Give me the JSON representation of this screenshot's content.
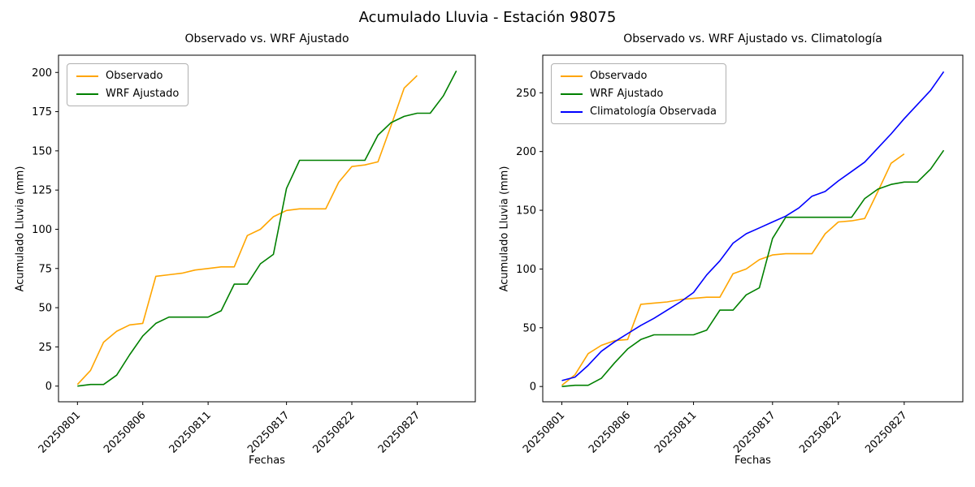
{
  "figure": {
    "suptitle": "Acumulado Lluvia - Estación 98075",
    "background": "#ffffff",
    "text_color": "#000000"
  },
  "chart_data": [
    {
      "type": "line",
      "title": "Observado vs. WRF Ajustado",
      "xlabel": "Fechas",
      "ylabel": "Acumulado Lluvia (mm)",
      "grid": false,
      "legend_position": "upper left",
      "x_categories": [
        "20250801",
        "20250802",
        "20250803",
        "20250804",
        "20250805",
        "20250806",
        "20250807",
        "20250808",
        "20250809",
        "20250810",
        "20250811",
        "20250812",
        "20250813",
        "20250814",
        "20250815",
        "20250816",
        "20250817",
        "20250818",
        "20250819",
        "20250820",
        "20250821",
        "20250822",
        "20250823",
        "20250824",
        "20250825",
        "20250826",
        "20250827",
        "20250828",
        "20250829",
        "20250830"
      ],
      "x_tick_indices": [
        0,
        5,
        10,
        16,
        21,
        26
      ],
      "x_tick_labels": [
        "20250801",
        "20250806",
        "20250811",
        "20250817",
        "20250822",
        "20250827"
      ],
      "y_ticks": [
        0,
        25,
        50,
        75,
        100,
        125,
        150,
        175,
        200
      ],
      "ylim": [
        -10,
        211
      ],
      "series": [
        {
          "name": "Observado",
          "color": "#ffa500",
          "values": [
            1,
            10,
            28,
            35,
            39,
            40,
            70,
            71,
            72,
            74,
            75,
            76,
            76,
            96,
            100,
            108,
            112,
            113,
            113,
            113,
            130,
            140,
            141,
            143,
            166,
            190,
            198
          ]
        },
        {
          "name": "WRF Ajustado",
          "color": "#008000",
          "values": [
            0,
            1,
            1,
            7,
            20,
            32,
            40,
            44,
            44,
            44,
            44,
            48,
            65,
            65,
            78,
            84,
            126,
            144,
            144,
            144,
            144,
            144,
            144,
            160,
            168,
            172,
            174,
            174,
            185,
            201
          ]
        }
      ]
    },
    {
      "type": "line",
      "title": "Observado vs. WRF Ajustado vs. Climatología",
      "xlabel": "Fechas",
      "ylabel": "Acumulado Lluvia (mm)",
      "grid": false,
      "legend_position": "upper left",
      "x_categories": [
        "20250801",
        "20250802",
        "20250803",
        "20250804",
        "20250805",
        "20250806",
        "20250807",
        "20250808",
        "20250809",
        "20250810",
        "20250811",
        "20250812",
        "20250813",
        "20250814",
        "20250815",
        "20250816",
        "20250817",
        "20250818",
        "20250819",
        "20250820",
        "20250821",
        "20250822",
        "20250823",
        "20250824",
        "20250825",
        "20250826",
        "20250827",
        "20250828",
        "20250829",
        "20250830"
      ],
      "x_tick_indices": [
        0,
        5,
        10,
        16,
        21,
        26
      ],
      "x_tick_labels": [
        "20250801",
        "20250806",
        "20250811",
        "20250817",
        "20250822",
        "20250827"
      ],
      "y_ticks": [
        0,
        50,
        100,
        150,
        200,
        250
      ],
      "ylim": [
        -13,
        282
      ],
      "series": [
        {
          "name": "Observado",
          "color": "#ffa500",
          "values": [
            1,
            10,
            28,
            35,
            39,
            40,
            70,
            71,
            72,
            74,
            75,
            76,
            76,
            96,
            100,
            108,
            112,
            113,
            113,
            113,
            130,
            140,
            141,
            143,
            166,
            190,
            198
          ]
        },
        {
          "name": "WRF Ajustado",
          "color": "#008000",
          "values": [
            0,
            1,
            1,
            7,
            20,
            32,
            40,
            44,
            44,
            44,
            44,
            48,
            65,
            65,
            78,
            84,
            126,
            144,
            144,
            144,
            144,
            144,
            144,
            160,
            168,
            172,
            174,
            174,
            185,
            201
          ]
        },
        {
          "name": "Climatología Observada",
          "color": "#0000ff",
          "values": [
            5,
            8,
            18,
            30,
            38,
            45,
            52,
            58,
            65,
            72,
            80,
            95,
            107,
            122,
            130,
            135,
            140,
            145,
            152,
            162,
            166,
            175,
            183,
            191,
            203,
            215,
            228,
            240,
            252,
            268
          ]
        }
      ]
    }
  ]
}
